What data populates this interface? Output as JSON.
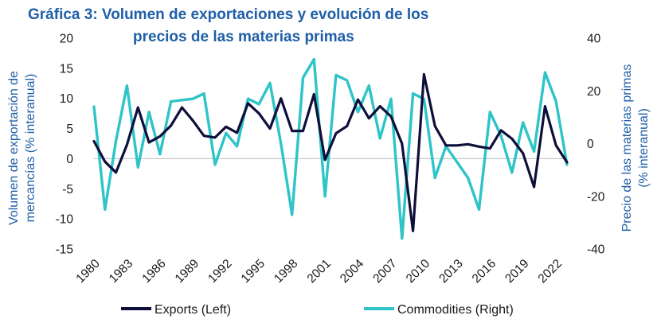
{
  "chart_data": {
    "type": "line",
    "title_line1": "Gráfica 3: Volumen de exportaciones y evolución de los",
    "title_line2": "precios de las materias primas",
    "ylabel_left_line1": "Volumen de exportación de",
    "ylabel_left_line2": "mercancías (% interanual)",
    "ylabel_right_line1": "Precio de las materias primas",
    "ylabel_right_line2": "(% interanual)",
    "ylim_left": [
      -15,
      20
    ],
    "yticks_left": [
      20,
      15,
      10,
      5,
      0,
      -5,
      -10,
      -15
    ],
    "ylim_right": [
      -40,
      40
    ],
    "yticks_right": [
      40,
      20,
      0,
      -20,
      -40
    ],
    "x": [
      1980,
      1981,
      1982,
      1983,
      1984,
      1985,
      1986,
      1987,
      1988,
      1989,
      1990,
      1991,
      1992,
      1993,
      1994,
      1995,
      1996,
      1997,
      1998,
      1999,
      2000,
      2001,
      2002,
      2003,
      2004,
      2005,
      2006,
      2007,
      2008,
      2009,
      2010,
      2011,
      2012,
      2013,
      2014,
      2015,
      2016,
      2017,
      2018,
      2019,
      2020,
      2021,
      2022,
      2023
    ],
    "xlim": [
      1980,
      2023
    ],
    "xtick_labels": [
      "1980",
      "1983",
      "1986",
      "1989",
      "1992",
      "1995",
      "1998",
      "2001",
      "2004",
      "2007",
      "2010",
      "2013",
      "2016",
      "2019",
      "2022"
    ],
    "series": [
      {
        "name": "Exports (Left)",
        "axis": "left",
        "color": "#0f0f3c",
        "values": [
          2.9,
          -0.5,
          -2.3,
          2.3,
          8.5,
          2.7,
          3.7,
          5.5,
          8.5,
          6.3,
          3.8,
          3.5,
          5.3,
          4.3,
          9.2,
          7.5,
          5.0,
          10.0,
          4.6,
          4.6,
          10.7,
          -0.2,
          4.2,
          5.4,
          9.8,
          6.7,
          8.7,
          7.0,
          2.5,
          -12.0,
          14.0,
          5.4,
          2.2,
          2.2,
          2.4,
          2.0,
          1.7,
          4.7,
          3.3,
          0.9,
          -4.7,
          8.7,
          2.2,
          -0.6
        ]
      },
      {
        "name": "Commodities (Right)",
        "axis": "right",
        "color": "#2ec4c8",
        "values": [
          14,
          -25,
          1,
          22,
          -9,
          12,
          -4,
          16,
          16.5,
          17,
          19,
          -8,
          4,
          -1,
          17,
          15,
          23,
          0,
          -27,
          25,
          32,
          -20,
          26,
          24,
          12,
          22,
          2,
          17,
          -36,
          19,
          17,
          -13,
          -1,
          -7,
          -13,
          -25,
          12,
          3,
          -11,
          8,
          -3,
          27,
          16,
          -8
        ]
      }
    ]
  }
}
